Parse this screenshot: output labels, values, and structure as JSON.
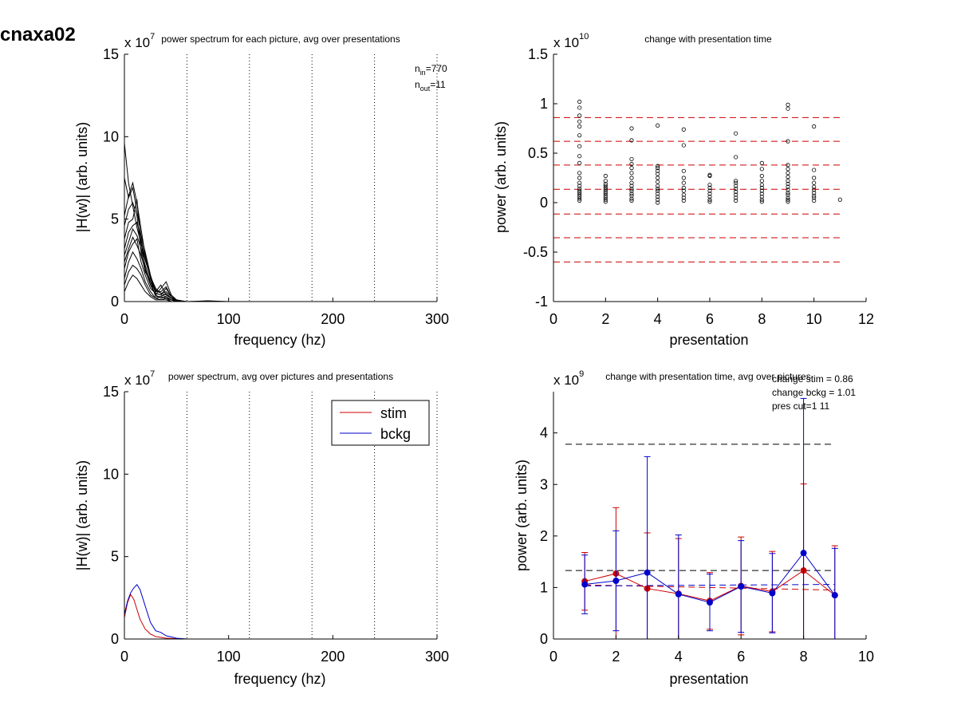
{
  "figure_label": "cnaxa02",
  "chart_data": [
    {
      "type": "line",
      "title": "power spectrum for each picture, avg over presentations",
      "xlabel": "frequency (hz)",
      "ylabel": "|H(w)| (arb. units)",
      "y_exponent": "x 10",
      "y_exponent_power": "7",
      "xlim": [
        0,
        300
      ],
      "ylim": [
        0,
        15
      ],
      "xticks": [
        "0",
        "100",
        "200",
        "300"
      ],
      "yticks": [
        "0",
        "5",
        "10",
        "15"
      ],
      "vlines": [
        60,
        120,
        180,
        240,
        300
      ],
      "n_in_label": "n",
      "n_in_sub": "in",
      "n_in_value": "=770",
      "n_out_label": "n",
      "n_out_sub": "out",
      "n_out_value": "=11",
      "color": "#000000",
      "series": [
        {
          "x": [
            0,
            4,
            8,
            12,
            16,
            20,
            25,
            30,
            35,
            40,
            45,
            50,
            55,
            60,
            80,
            100,
            150,
            200,
            300
          ],
          "y": [
            9.6,
            7.2,
            5.8,
            4.5,
            3.5,
            2.5,
            1.5,
            0.8,
            0.5,
            0.6,
            0.3,
            0.1,
            0.05,
            0,
            0.05,
            0,
            0,
            0,
            0
          ]
        },
        {
          "x": [
            0,
            4,
            8,
            12,
            16,
            20,
            25,
            30,
            35,
            40,
            45,
            50,
            55,
            60,
            80,
            100,
            150,
            200,
            300
          ],
          "y": [
            7.5,
            6.3,
            6.9,
            5.5,
            4.0,
            3.0,
            1.6,
            0.6,
            1.0,
            0.4,
            0.2,
            0.1,
            0,
            0,
            0,
            0,
            0,
            0,
            0
          ]
        },
        {
          "x": [
            0,
            4,
            8,
            12,
            16,
            20,
            25,
            30,
            35,
            40,
            45,
            50,
            55,
            60,
            80,
            100,
            150,
            200,
            300
          ],
          "y": [
            5.2,
            6.4,
            7.2,
            6.0,
            4.4,
            2.8,
            1.4,
            0.5,
            0.4,
            0.8,
            0.3,
            0.05,
            0,
            0,
            0,
            0,
            0,
            0,
            0
          ]
        },
        {
          "x": [
            0,
            4,
            8,
            12,
            16,
            20,
            25,
            30,
            35,
            40,
            45,
            50,
            55,
            60,
            80,
            100,
            150,
            200,
            300
          ],
          "y": [
            3.8,
            4.8,
            5.0,
            6.2,
            3.6,
            2.0,
            1.0,
            0.4,
            0.8,
            1.2,
            0.4,
            0.1,
            0,
            0,
            0,
            0,
            0,
            0,
            0
          ]
        },
        {
          "x": [
            0,
            4,
            8,
            12,
            16,
            20,
            25,
            30,
            35,
            40,
            45,
            50,
            55,
            60,
            80,
            100,
            150,
            200,
            300
          ],
          "y": [
            2.8,
            3.6,
            4.4,
            4.0,
            3.2,
            2.2,
            1.2,
            0.3,
            0.3,
            0.5,
            0.2,
            0,
            0,
            0,
            0,
            0,
            0,
            0,
            0
          ]
        },
        {
          "x": [
            0,
            4,
            8,
            12,
            16,
            20,
            25,
            30,
            35,
            40,
            45,
            50,
            55,
            60,
            80,
            100,
            150,
            200,
            300
          ],
          "y": [
            2.0,
            3.0,
            3.5,
            3.8,
            2.4,
            1.6,
            0.8,
            0.5,
            0.4,
            0.3,
            0.1,
            0,
            0,
            0,
            0,
            0,
            0,
            0,
            0
          ]
        },
        {
          "x": [
            0,
            4,
            8,
            12,
            16,
            20,
            25,
            30,
            35,
            40,
            45,
            50,
            55,
            60,
            80,
            100,
            150,
            200,
            300
          ],
          "y": [
            1.4,
            2.4,
            3.0,
            2.6,
            2.0,
            1.2,
            0.6,
            0.2,
            0.3,
            0.2,
            0.1,
            0,
            0,
            0,
            0,
            0,
            0,
            0,
            0
          ]
        },
        {
          "x": [
            0,
            4,
            8,
            12,
            16,
            20,
            25,
            30,
            35,
            40,
            45,
            50,
            55,
            60,
            80,
            100,
            150,
            200,
            300
          ],
          "y": [
            1.0,
            1.8,
            2.2,
            2.0,
            1.6,
            1.0,
            0.4,
            0.2,
            0.1,
            0.2,
            0,
            0,
            0,
            0,
            0,
            0,
            0,
            0,
            0
          ]
        },
        {
          "x": [
            0,
            4,
            8,
            12,
            16,
            20,
            25,
            30,
            35,
            40,
            45,
            50,
            55,
            60,
            80,
            100,
            150,
            200,
            300
          ],
          "y": [
            0.6,
            1.2,
            1.6,
            1.4,
            1.0,
            0.6,
            0.3,
            0.1,
            0.1,
            0.1,
            0,
            0,
            0,
            0,
            0,
            0,
            0,
            0,
            0
          ]
        },
        {
          "x": [
            0,
            4,
            8,
            12,
            16,
            20,
            25,
            30,
            35,
            40,
            45,
            50,
            55,
            60,
            80,
            100,
            150,
            200,
            300
          ],
          "y": [
            4.6,
            5.6,
            6.0,
            5.2,
            3.0,
            1.8,
            1.2,
            0.6,
            0.6,
            0.9,
            0.3,
            0.1,
            0,
            0,
            0,
            0,
            0,
            0,
            0
          ]
        },
        {
          "x": [
            0,
            4,
            8,
            12,
            16,
            20,
            25,
            30,
            35,
            40,
            45,
            50,
            55,
            60,
            80,
            100,
            150,
            200,
            300
          ],
          "y": [
            3.2,
            4.2,
            4.6,
            4.8,
            3.8,
            2.6,
            1.4,
            0.7,
            0.5,
            0.4,
            0.2,
            0,
            0,
            0,
            0,
            0,
            0,
            0,
            0
          ]
        },
        {
          "x": [
            0,
            4,
            8,
            12,
            16,
            20,
            25,
            30,
            35,
            40,
            45,
            50,
            55,
            60,
            80,
            100,
            150,
            200,
            300
          ],
          "y": [
            2.4,
            3.2,
            3.9,
            3.4,
            2.8,
            1.9,
            1.0,
            0.4,
            0.2,
            0.3,
            0.1,
            0,
            0,
            0,
            0,
            0,
            0,
            0,
            0
          ]
        }
      ]
    },
    {
      "type": "scatter",
      "title": "change with presentation time",
      "xlabel": "presentation",
      "ylabel": "power (arb. units)",
      "y_exponent": "x 10",
      "y_exponent_power": "10",
      "xlim": [
        0,
        12
      ],
      "ylim": [
        -1,
        1.5
      ],
      "xticks": [
        "0",
        "2",
        "4",
        "6",
        "8",
        "10",
        "12"
      ],
      "yticks": [
        "-1",
        "-0.5",
        "0",
        "0.5",
        "1",
        "1.5"
      ],
      "hlines": [
        0.86,
        0.62,
        0.38,
        0.135,
        -0.115,
        -0.355,
        -0.6
      ],
      "hline_color": "#cc0000",
      "points": [
        {
          "x": 1,
          "y": [
            1.02,
            0.96,
            0.88,
            0.82,
            0.77,
            0.68,
            0.57,
            0.47,
            0.4,
            0.3,
            0.25,
            0.2,
            0.17,
            0.14,
            0.12,
            0.1,
            0.08,
            0.06,
            0.04,
            0.02
          ]
        },
        {
          "x": 2,
          "y": [
            0.27,
            0.22,
            0.19,
            0.17,
            0.15,
            0.13,
            0.11,
            0.09,
            0.07,
            0.05,
            0.03,
            0.01
          ]
        },
        {
          "x": 3,
          "y": [
            0.75,
            0.63,
            0.44,
            0.39,
            0.35,
            0.3,
            0.25,
            0.2,
            0.17,
            0.14,
            0.12,
            0.09,
            0.07,
            0.04,
            0.02
          ]
        },
        {
          "x": 4,
          "y": [
            0.78,
            0.37,
            0.35,
            0.32,
            0.29,
            0.25,
            0.21,
            0.17,
            0.14,
            0.12,
            0.09,
            0.06,
            0.03,
            0.0
          ]
        },
        {
          "x": 5,
          "y": [
            0.74,
            0.58,
            0.32,
            0.25,
            0.2,
            0.15,
            0.12,
            0.08,
            0.05,
            0.02
          ]
        },
        {
          "x": 6,
          "y": [
            0.28,
            0.27,
            0.18,
            0.15,
            0.12,
            0.09,
            0.06,
            0.03,
            0.01
          ]
        },
        {
          "x": 7,
          "y": [
            0.7,
            0.46,
            0.22,
            0.2,
            0.17,
            0.14,
            0.11,
            0.08,
            0.05,
            0.02
          ]
        },
        {
          "x": 8,
          "y": [
            0.4,
            0.34,
            0.27,
            0.22,
            0.18,
            0.15,
            0.12,
            0.09,
            0.06,
            0.03,
            0.01
          ]
        },
        {
          "x": 9,
          "y": [
            0.99,
            0.95,
            0.62,
            0.38,
            0.34,
            0.3,
            0.26,
            0.22,
            0.19,
            0.16,
            0.13,
            0.1,
            0.08,
            0.05,
            0.03,
            0.01
          ]
        },
        {
          "x": 10,
          "y": [
            0.77,
            0.33,
            0.25,
            0.2,
            0.16,
            0.13,
            0.1,
            0.07,
            0.05,
            0.02
          ]
        },
        {
          "x": 11,
          "y": [
            0.03
          ]
        }
      ]
    },
    {
      "type": "line",
      "title": "power spectrum, avg over pictures and presentations",
      "xlabel": "frequency (hz)",
      "ylabel": "|H(w)| (arb. units)",
      "y_exponent": "x 10",
      "y_exponent_power": "7",
      "xlim": [
        0,
        300
      ],
      "ylim": [
        0,
        15
      ],
      "xticks": [
        "0",
        "100",
        "200",
        "300"
      ],
      "yticks": [
        "0",
        "5",
        "10",
        "15"
      ],
      "vlines": [
        60,
        120,
        180,
        240,
        300
      ],
      "legend_position": "top-right",
      "series": [
        {
          "name": "stim",
          "color": "#cc0000",
          "x": [
            0,
            3,
            6,
            9,
            12,
            15,
            20,
            25,
            30,
            35,
            40,
            50,
            60,
            80,
            100,
            150,
            200,
            300
          ],
          "y": [
            1.3,
            2.2,
            2.7,
            2.4,
            1.8,
            1.2,
            0.6,
            0.3,
            0.15,
            0.1,
            0.05,
            0.02,
            0,
            0,
            0,
            0,
            0,
            0
          ]
        },
        {
          "name": "bckg",
          "color": "#0000cc",
          "x": [
            0,
            3,
            6,
            9,
            12,
            15,
            20,
            25,
            30,
            35,
            40,
            50,
            60,
            80,
            100,
            150,
            200,
            300
          ],
          "y": [
            1.5,
            2.3,
            2.8,
            3.1,
            3.3,
            3.0,
            2.0,
            1.0,
            0.5,
            0.4,
            0.2,
            0.05,
            0,
            0,
            0,
            0,
            0,
            0
          ]
        }
      ]
    },
    {
      "type": "line",
      "title": "change with presentation time, avg over pictures",
      "xlabel": "presentation",
      "ylabel": "power (arb. units)",
      "y_exponent": "x 10",
      "y_exponent_power": "9",
      "xlim": [
        0,
        10
      ],
      "ylim": [
        0,
        4.8
      ],
      "xticks": [
        "0",
        "2",
        "4",
        "6",
        "8",
        "10"
      ],
      "yticks": [
        "0",
        "1",
        "2",
        "3",
        "4"
      ],
      "annotations": [
        "change stim = 0.86",
        "change bckg = 1.01",
        "pres cut=1 11"
      ],
      "hlines": [
        3.78,
        1.33
      ],
      "hline_color": "#000000",
      "series": [
        {
          "name": "stim",
          "color": "#cc0000",
          "x": [
            1,
            2,
            3,
            4,
            5,
            6,
            7,
            8,
            9
          ],
          "y": [
            1.12,
            1.27,
            0.98,
            0.88,
            0.74,
            1.03,
            0.92,
            1.33,
            0.85
          ],
          "err": [
            0.56,
            1.28,
            1.08,
            1.07,
            0.55,
            0.95,
            0.78,
            1.68,
            0.96
          ]
        },
        {
          "name": "bckg",
          "color": "#0000cc",
          "x": [
            1,
            2,
            3,
            4,
            5,
            6,
            7,
            8,
            9
          ],
          "y": [
            1.06,
            1.13,
            1.29,
            0.87,
            0.71,
            1.02,
            0.89,
            1.67,
            0.85
          ],
          "err": [
            0.57,
            0.97,
            2.25,
            1.15,
            0.55,
            0.89,
            0.77,
            3.0,
            0.91
          ]
        }
      ],
      "trend_lines": [
        {
          "color": "#cc0000",
          "x": [
            1,
            9
          ],
          "y": [
            1.05,
            0.95
          ]
        },
        {
          "color": "#0000cc",
          "x": [
            1,
            9
          ],
          "y": [
            1.03,
            1.06
          ]
        }
      ]
    }
  ]
}
